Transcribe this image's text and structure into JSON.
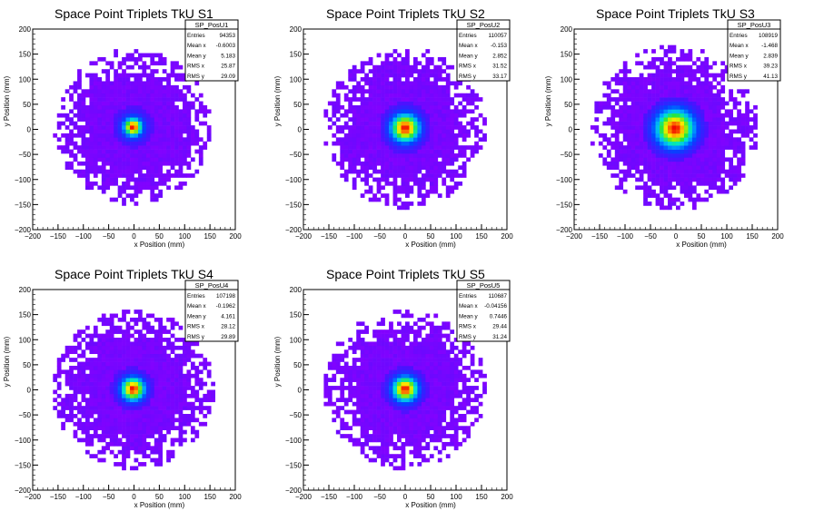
{
  "chart_data": [
    {
      "type": "heatmap",
      "title": "Space Point Triplets TkU S1",
      "xlabel": "x Position (mm)",
      "ylabel": "y Position (mm)",
      "xlim": [
        -200,
        200
      ],
      "ylim": [
        -200,
        200
      ],
      "xticks": [
        "−200",
        "−150",
        "−100",
        "−50",
        "0",
        "50",
        "100",
        "150",
        "200"
      ],
      "yticks": [
        "200",
        "150",
        "100",
        "50",
        "0",
        "−50",
        "−100",
        "−150",
        "−200"
      ],
      "center": [
        -2,
        5
      ],
      "core_sigma": 10,
      "halo_sigma": 26,
      "spread_radius": 155,
      "stats": {
        "name": "SP_PosU1",
        "rows": [
          [
            "Entries",
            "94353"
          ],
          [
            "Mean x",
            "-0.6003"
          ],
          [
            "Mean y",
            "5.183"
          ],
          [
            "RMS x",
            "25.87"
          ],
          [
            "RMS y",
            "29.09"
          ]
        ]
      }
    },
    {
      "type": "heatmap",
      "title": "Space Point Triplets TkU S2",
      "xlabel": "x Position (mm)",
      "ylabel": "y Position (mm)",
      "xlim": [
        -200,
        200
      ],
      "ylim": [
        -200,
        200
      ],
      "xticks": [
        "−200",
        "−150",
        "−100",
        "−50",
        "0",
        "50",
        "100",
        "150",
        "200"
      ],
      "yticks": [
        "200",
        "150",
        "100",
        "50",
        "0",
        "−50",
        "−100",
        "−150",
        "−200"
      ],
      "center": [
        0,
        3
      ],
      "core_sigma": 16,
      "halo_sigma": 32,
      "spread_radius": 160,
      "stats": {
        "name": "SP_PosU2",
        "rows": [
          [
            "Entries",
            "110057"
          ],
          [
            "Mean x",
            "-0.153"
          ],
          [
            "Mean y",
            "2.852"
          ],
          [
            "RMS x",
            "31.52"
          ],
          [
            "RMS y",
            "33.17"
          ]
        ]
      }
    },
    {
      "type": "heatmap",
      "title": "Space Point Triplets TkU S3",
      "xlabel": "x Position (mm)",
      "ylabel": "y Position (mm)",
      "xlim": [
        -200,
        200
      ],
      "ylim": [
        -200,
        200
      ],
      "xticks": [
        "−200",
        "−150",
        "−100",
        "−50",
        "0",
        "50",
        "100",
        "150",
        "200"
      ],
      "yticks": [
        "200",
        "150",
        "100",
        "50",
        "0",
        "−50",
        "−100",
        "−150",
        "−200"
      ],
      "center": [
        -2,
        2
      ],
      "core_sigma": 22,
      "halo_sigma": 40,
      "spread_radius": 165,
      "stats": {
        "name": "SP_PosU3",
        "rows": [
          [
            "Entries",
            "108919"
          ],
          [
            "Mean x",
            "-1.468"
          ],
          [
            "Mean y",
            "2.839"
          ],
          [
            "RMS x",
            "39.23"
          ],
          [
            "RMS y",
            "41.13"
          ]
        ]
      }
    },
    {
      "type": "heatmap",
      "title": "Space Point Triplets TkU S4",
      "xlabel": "x Position (mm)",
      "ylabel": "y Position (mm)",
      "xlim": [
        -200,
        200
      ],
      "ylim": [
        -200,
        200
      ],
      "xticks": [
        "−200",
        "−150",
        "−100",
        "−50",
        "0",
        "50",
        "100",
        "150",
        "200"
      ],
      "yticks": [
        "200",
        "150",
        "100",
        "50",
        "0",
        "−50",
        "−100",
        "−150",
        "−200"
      ],
      "center": [
        -2,
        2
      ],
      "core_sigma": 13,
      "halo_sigma": 27,
      "spread_radius": 160,
      "stats": {
        "name": "SP_PosU4",
        "rows": [
          [
            "Entries",
            "107198"
          ],
          [
            "Mean x",
            "-0.1962"
          ],
          [
            "Mean y",
            "4.161"
          ],
          [
            "RMS x",
            "28.12"
          ],
          [
            "RMS y",
            "29.89"
          ]
        ]
      }
    },
    {
      "type": "heatmap",
      "title": "Space Point Triplets TkU S5",
      "xlabel": "x Position (mm)",
      "ylabel": "y Position (mm)",
      "xlim": [
        -200,
        200
      ],
      "ylim": [
        -200,
        200
      ],
      "xticks": [
        "−200",
        "−150",
        "−100",
        "−50",
        "0",
        "50",
        "100",
        "150",
        "200"
      ],
      "yticks": [
        "200",
        "150",
        "100",
        "50",
        "0",
        "−50",
        "−100",
        "−150",
        "−200"
      ],
      "center": [
        0,
        2
      ],
      "core_sigma": 14,
      "halo_sigma": 29,
      "spread_radius": 160,
      "stats": {
        "name": "SP_PosU5",
        "rows": [
          [
            "Entries",
            "110687"
          ],
          [
            "Mean x",
            "-0.04156"
          ],
          [
            "Mean y",
            "0.7446"
          ],
          [
            "RMS x",
            "29.44"
          ],
          [
            "RMS y",
            "31.24"
          ]
        ]
      }
    }
  ]
}
